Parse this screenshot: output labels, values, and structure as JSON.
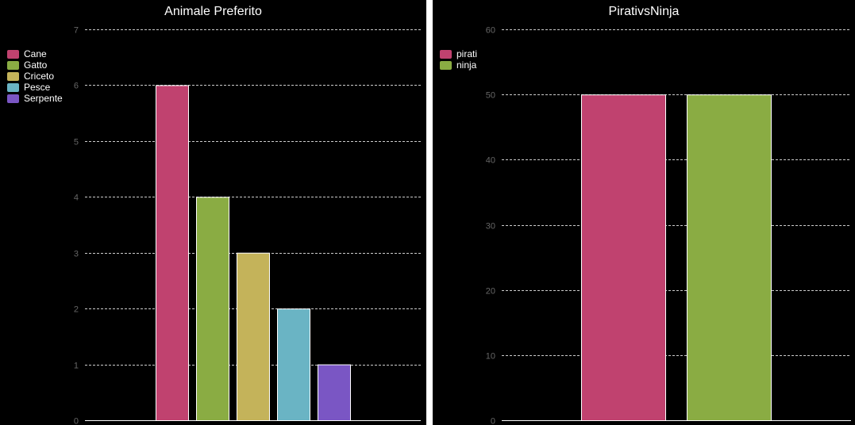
{
  "chart_data": [
    {
      "type": "bar",
      "title": "Animale Preferito",
      "categories": [
        "Cane",
        "Gatto",
        "Criceto",
        "Pesce",
        "Serpente"
      ],
      "values": [
        6,
        4,
        3,
        2,
        1
      ],
      "colors": [
        "#c0426f",
        "#8aac43",
        "#c4b35a",
        "#6ab4c4",
        "#7a56c4"
      ],
      "ylim": [
        0,
        7
      ],
      "yticks": [
        0,
        1,
        2,
        3,
        4,
        5,
        6,
        7
      ],
      "grid": true,
      "grid_style": "dashed",
      "legend": "top-left",
      "background": "#000000"
    },
    {
      "type": "bar",
      "title": "PirativsNinja",
      "categories": [
        "pirati",
        "ninja"
      ],
      "values": [
        50,
        50
      ],
      "colors": [
        "#c0426f",
        "#8aac43"
      ],
      "ylim": [
        0,
        60
      ],
      "yticks": [
        0,
        10,
        20,
        30,
        40,
        50,
        60
      ],
      "grid": true,
      "grid_style": "dashed",
      "legend": "top-left",
      "background": "#000000"
    }
  ]
}
